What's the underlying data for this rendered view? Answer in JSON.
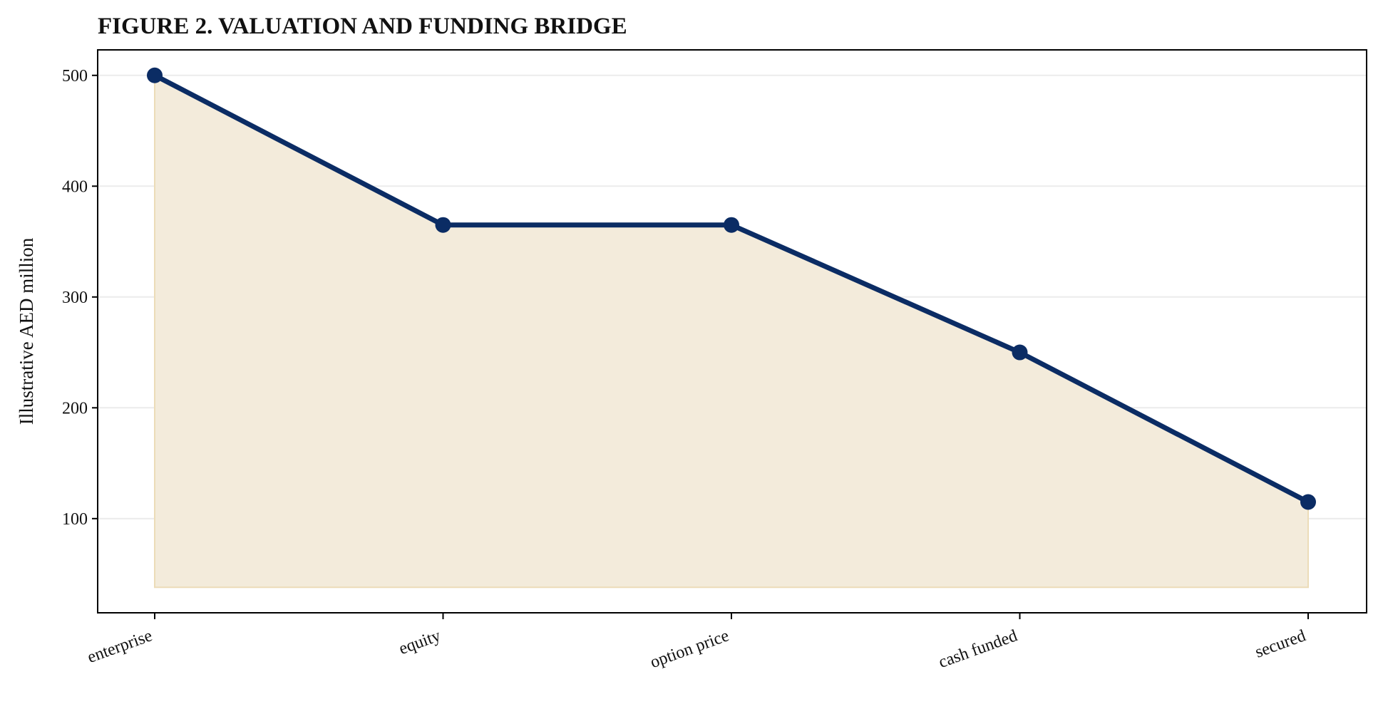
{
  "chart_data": {
    "type": "area",
    "title": "FIGURE 2. VALUATION AND FUNDING BRIDGE",
    "xlabel": "",
    "ylabel": "Illustrative AED million",
    "categories": [
      "enterprise",
      "equity",
      "option price",
      "cash funded",
      "secured"
    ],
    "series": [
      {
        "values": [
          500,
          365,
          365,
          250,
          115
        ]
      }
    ],
    "fill_baseline": 38,
    "ylim": [
      15,
      523
    ],
    "yticks": [
      "100",
      "200",
      "300",
      "400",
      "500"
    ],
    "grid": "horizontal",
    "legend": "none",
    "colors": {
      "line": "#0b2c64",
      "fill": "#f3ebdb",
      "fill_edge": "#ecdcb8",
      "grid": "#ececec"
    }
  }
}
